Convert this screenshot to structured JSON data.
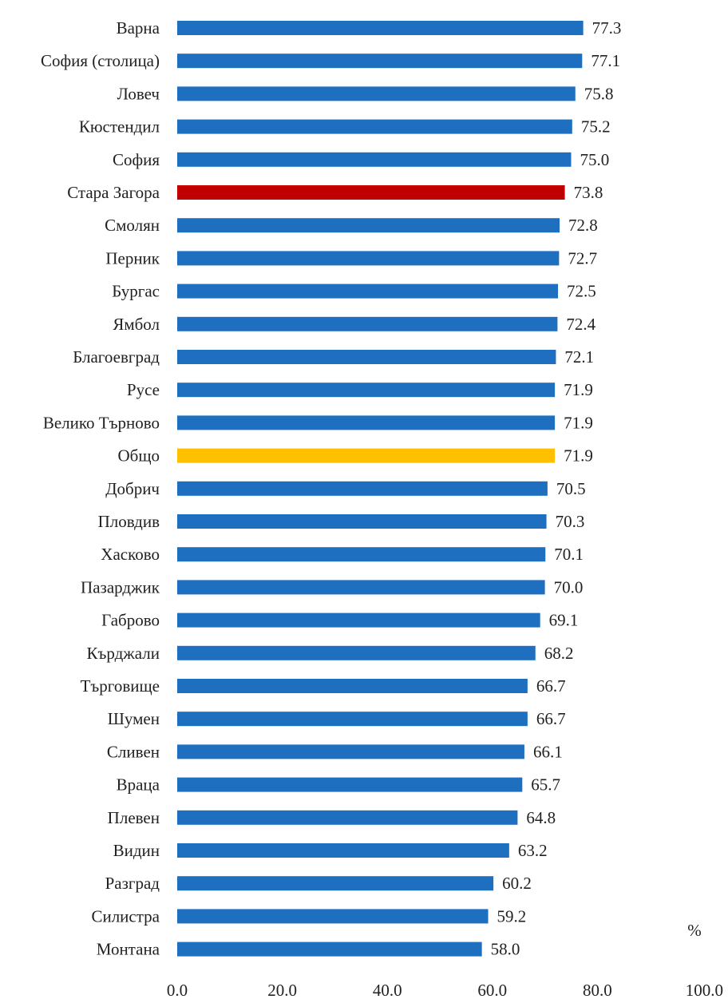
{
  "chart_data": {
    "type": "bar",
    "orientation": "horizontal",
    "categories": [
      "Варна",
      "София (столица)",
      "Ловеч",
      "Кюстендил",
      "София",
      "Стара Загора",
      "Смолян",
      "Перник",
      "Бургас",
      "Ямбол",
      "Благоевград",
      "Русе",
      "Велико Търново",
      "Общо",
      "Добрич",
      "Пловдив",
      "Хасково",
      "Пазарджик",
      "Габрово",
      "Кърджали",
      "Търговище",
      "Шумен",
      "Сливен",
      "Враца",
      "Плевен",
      "Видин",
      "Разград",
      "Силистра",
      "Монтана"
    ],
    "values": [
      77.3,
      77.1,
      75.8,
      75.2,
      75.0,
      73.8,
      72.8,
      72.7,
      72.5,
      72.4,
      72.1,
      71.9,
      71.9,
      71.9,
      70.5,
      70.3,
      70.1,
      70.0,
      69.1,
      68.2,
      66.7,
      66.7,
      66.1,
      65.7,
      64.8,
      63.2,
      60.2,
      59.2,
      58.0
    ],
    "value_labels": [
      "77.3",
      "77.1",
      "75.8",
      "75.2",
      "75.0",
      "73.8",
      "72.8",
      "72.7",
      "72.5",
      "72.4",
      "72.1",
      "71.9",
      "71.9",
      "71.9",
      "70.5",
      "70.3",
      "70.1",
      "70.0",
      "69.1",
      "68.2",
      "66.7",
      "66.7",
      "66.1",
      "65.7",
      "64.8",
      "63.2",
      "60.2",
      "59.2",
      "58.0"
    ],
    "xlim": [
      0,
      100
    ],
    "xticks": [
      "0.0",
      "20.0",
      "40.0",
      "60.0",
      "80.0",
      "100.0"
    ],
    "unit_label": "%",
    "grid": false,
    "colors": {
      "default": "#1f6fc0",
      "highlight": "#c00000",
      "total": "#ffc000"
    },
    "highlight_category": "Стара Загора",
    "total_category": "Общо"
  }
}
